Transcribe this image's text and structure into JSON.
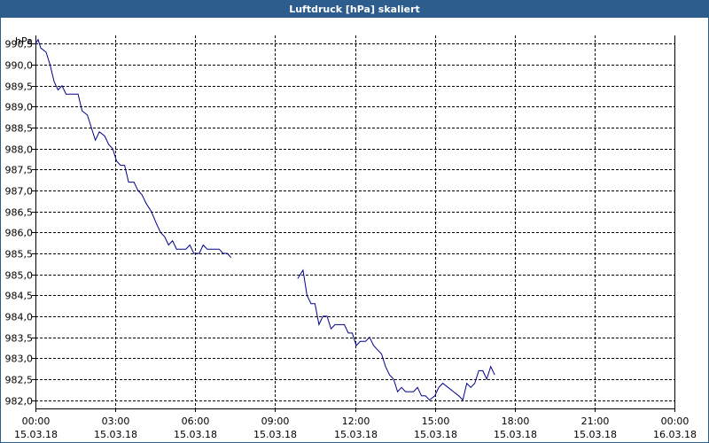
{
  "chart_data": {
    "type": "line",
    "title": "Luftdruck [hPa] skaliert",
    "ylabel": "hPa",
    "ylim": [
      981.8,
      990.7
    ],
    "y_ticks": [
      "990,5",
      "990,0",
      "989,5",
      "989,0",
      "988,5",
      "988,0",
      "987,5",
      "987,0",
      "986,5",
      "986,0",
      "985,5",
      "985,0",
      "984,5",
      "984,0",
      "983,5",
      "983,0",
      "982,5",
      "982,0"
    ],
    "y_tick_values": [
      990.5,
      990.0,
      989.5,
      989.0,
      988.5,
      988.0,
      987.5,
      987.0,
      986.5,
      986.0,
      985.5,
      985.0,
      984.5,
      984.0,
      983.5,
      983.0,
      982.5,
      982.0
    ],
    "x_ticks": [
      {
        "time": "00:00",
        "date": "15.03.18"
      },
      {
        "time": "03:00",
        "date": "15.03.18"
      },
      {
        "time": "06:00",
        "date": "15.03.18"
      },
      {
        "time": "09:00",
        "date": "15.03.18"
      },
      {
        "time": "12:00",
        "date": "15.03.18"
      },
      {
        "time": "15:00",
        "date": "15.03.18"
      },
      {
        "time": "18:00",
        "date": "15.03.18"
      },
      {
        "time": "21:00",
        "date": "15.03.18"
      },
      {
        "time": "00:00",
        "date": "16.03.18"
      }
    ],
    "x_tick_hours": [
      0,
      3,
      6,
      9,
      12,
      15,
      18,
      21,
      24
    ],
    "xlim_hours": [
      0,
      24
    ],
    "grid": true,
    "series": [
      {
        "color": "#00008b",
        "segments": [
          [
            [
              0.0,
              990.5
            ],
            [
              0.1,
              990.6
            ],
            [
              0.2,
              990.4
            ],
            [
              0.4,
              990.3
            ],
            [
              0.55,
              990.0
            ],
            [
              0.7,
              989.6
            ],
            [
              0.85,
              989.4
            ],
            [
              1.0,
              989.5
            ],
            [
              1.15,
              989.3
            ],
            [
              1.6,
              989.3
            ],
            [
              1.75,
              988.9
            ],
            [
              1.95,
              988.8
            ],
            [
              2.1,
              988.5
            ],
            [
              2.25,
              988.2
            ],
            [
              2.4,
              988.4
            ],
            [
              2.6,
              988.3
            ],
            [
              2.75,
              988.1
            ],
            [
              2.9,
              988.0
            ],
            [
              3.05,
              987.7
            ],
            [
              3.2,
              987.6
            ],
            [
              3.35,
              987.6
            ],
            [
              3.5,
              987.2
            ],
            [
              3.7,
              987.2
            ],
            [
              3.85,
              987.0
            ],
            [
              4.0,
              986.9
            ],
            [
              4.15,
              986.7
            ],
            [
              4.35,
              986.5
            ],
            [
              4.55,
              986.2
            ],
            [
              4.7,
              986.0
            ],
            [
              4.85,
              985.9
            ],
            [
              5.0,
              985.7
            ],
            [
              5.15,
              985.8
            ],
            [
              5.3,
              985.6
            ],
            [
              5.65,
              985.6
            ],
            [
              5.8,
              985.7
            ],
            [
              5.95,
              985.5
            ],
            [
              6.15,
              985.5
            ],
            [
              6.3,
              985.7
            ],
            [
              6.45,
              985.6
            ],
            [
              6.9,
              985.6
            ],
            [
              7.05,
              985.5
            ],
            [
              7.2,
              985.5
            ],
            [
              7.35,
              985.4
            ]
          ],
          [
            [
              9.85,
              984.9
            ],
            [
              10.05,
              985.1
            ],
            [
              10.2,
              984.5
            ],
            [
              10.35,
              984.3
            ],
            [
              10.5,
              984.3
            ],
            [
              10.65,
              983.8
            ],
            [
              10.8,
              984.0
            ],
            [
              10.95,
              984.0
            ],
            [
              11.1,
              983.7
            ],
            [
              11.25,
              983.8
            ],
            [
              11.6,
              983.8
            ],
            [
              11.75,
              983.6
            ],
            [
              11.9,
              983.6
            ],
            [
              12.05,
              983.3
            ],
            [
              12.2,
              983.4
            ],
            [
              12.4,
              983.4
            ],
            [
              12.55,
              983.5
            ],
            [
              12.7,
              983.3
            ],
            [
              12.85,
              983.2
            ],
            [
              13.0,
              983.1
            ],
            [
              13.15,
              982.8
            ],
            [
              13.3,
              982.6
            ],
            [
              13.45,
              982.5
            ],
            [
              13.6,
              982.2
            ],
            [
              13.75,
              982.3
            ],
            [
              13.9,
              982.2
            ],
            [
              14.2,
              982.2
            ],
            [
              14.35,
              982.3
            ],
            [
              14.5,
              982.1
            ],
            [
              14.65,
              982.1
            ],
            [
              14.8,
              982.0
            ],
            [
              15.0,
              982.1
            ],
            [
              15.15,
              982.3
            ],
            [
              15.3,
              982.4
            ],
            [
              15.5,
              982.3
            ],
            [
              15.7,
              982.2
            ],
            [
              15.9,
              982.1
            ],
            [
              16.05,
              982.0
            ],
            [
              16.2,
              982.4
            ],
            [
              16.35,
              982.3
            ],
            [
              16.5,
              982.4
            ],
            [
              16.65,
              982.7
            ],
            [
              16.8,
              982.7
            ],
            [
              16.95,
              982.5
            ],
            [
              17.1,
              982.8
            ],
            [
              17.25,
              982.6
            ]
          ]
        ]
      }
    ],
    "colors": {
      "title_bar": "#2c5d8c",
      "title_text": "#ffffff",
      "grid": "#000000",
      "line": "#00008b"
    }
  }
}
